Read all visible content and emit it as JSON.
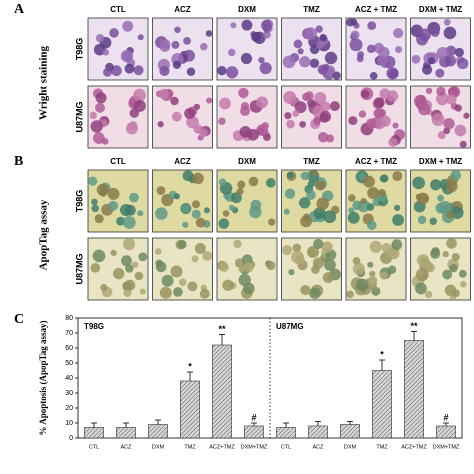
{
  "panel_a": {
    "label": "A",
    "side_label": "Wright staining",
    "columns": [
      "CTL",
      "ACZ",
      "DXM",
      "TMZ",
      "ACZ + TMZ",
      "DXM + TMZ"
    ],
    "rows": [
      "T98G",
      "U87MG"
    ]
  },
  "panel_b": {
    "label": "B",
    "side_label": "ApopTag assay",
    "columns": [
      "CTL",
      "ACZ",
      "DXM",
      "TMZ",
      "ACZ + TMZ",
      "DXM + TMZ"
    ],
    "rows": [
      "T98G",
      "U87MG"
    ]
  },
  "chart_data": {
    "type": "bar",
    "label": "C",
    "ylabel": "% Apoptosis (ApopTag assay)",
    "ylim": [
      0,
      80
    ],
    "yticks": [
      0,
      10,
      20,
      30,
      40,
      50,
      60,
      70,
      80
    ],
    "groups": [
      {
        "name": "T98G",
        "categories": [
          "CTL",
          "ACZ",
          "DXM",
          "TMZ",
          "ACZ+TMZ",
          "DXM+TMZ"
        ],
        "values": [
          7,
          7,
          9,
          38,
          62,
          8
        ],
        "errors": [
          3,
          3,
          3,
          6,
          7,
          2
        ],
        "markers": [
          {
            "index": 3,
            "text": "*"
          },
          {
            "index": 4,
            "text": "**"
          },
          {
            "index": 5,
            "text": "#"
          }
        ]
      },
      {
        "name": "U87MG",
        "categories": [
          "CTL",
          "ACZ",
          "DXM",
          "TMZ",
          "ACZ+TMZ",
          "DXM+TMZ"
        ],
        "values": [
          7,
          8,
          9,
          45,
          65,
          8
        ],
        "errors": [
          3,
          3,
          2,
          7,
          6,
          2
        ],
        "markers": [
          {
            "index": 3,
            "text": "*"
          },
          {
            "index": 4,
            "text": "**"
          },
          {
            "index": 5,
            "text": "#"
          }
        ]
      }
    ]
  }
}
